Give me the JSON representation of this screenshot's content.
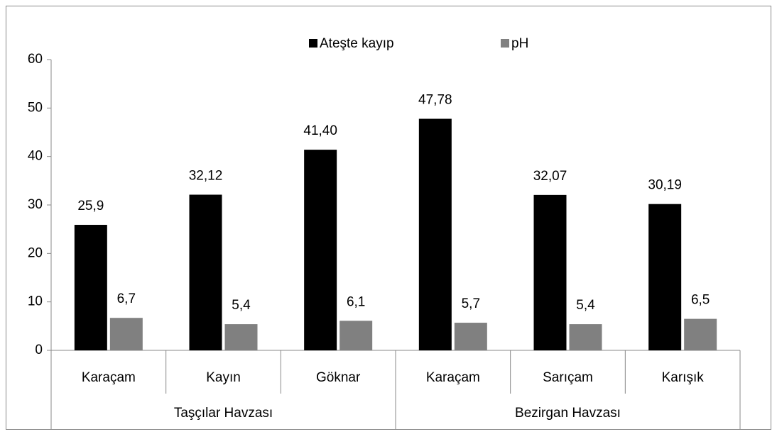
{
  "chart_data": {
    "type": "bar",
    "categories": [
      "Karaçam",
      "Kayın",
      "Göknar",
      "Karaçam",
      "Sarıçam",
      "Karışık"
    ],
    "category_groups": [
      "Taşçılar Havzası",
      "Taşçılar Havzası",
      "Taşçılar Havzası",
      "Bezirgan Havzası",
      "Bezirgan Havzası",
      "Bezirgan Havzası"
    ],
    "series": [
      {
        "name": "Ateşte kayıp",
        "color": "#000000",
        "values": [
          25.9,
          32.12,
          41.4,
          47.78,
          32.07,
          30.19
        ],
        "value_labels": [
          "25,9",
          "32,12",
          "41,40",
          "47,78",
          "32,07",
          "30,19"
        ]
      },
      {
        "name": "pH",
        "color": "#808080",
        "values": [
          6.7,
          5.4,
          6.1,
          5.7,
          5.4,
          6.5
        ],
        "value_labels": [
          "6,7",
          "5,4",
          "6,1",
          "5,7",
          "5,4",
          "6,5"
        ]
      }
    ],
    "ylim": [
      0,
      60
    ],
    "yticks": [
      0,
      10,
      20,
      30,
      40,
      50,
      60
    ],
    "grid": false,
    "legend": "top"
  }
}
